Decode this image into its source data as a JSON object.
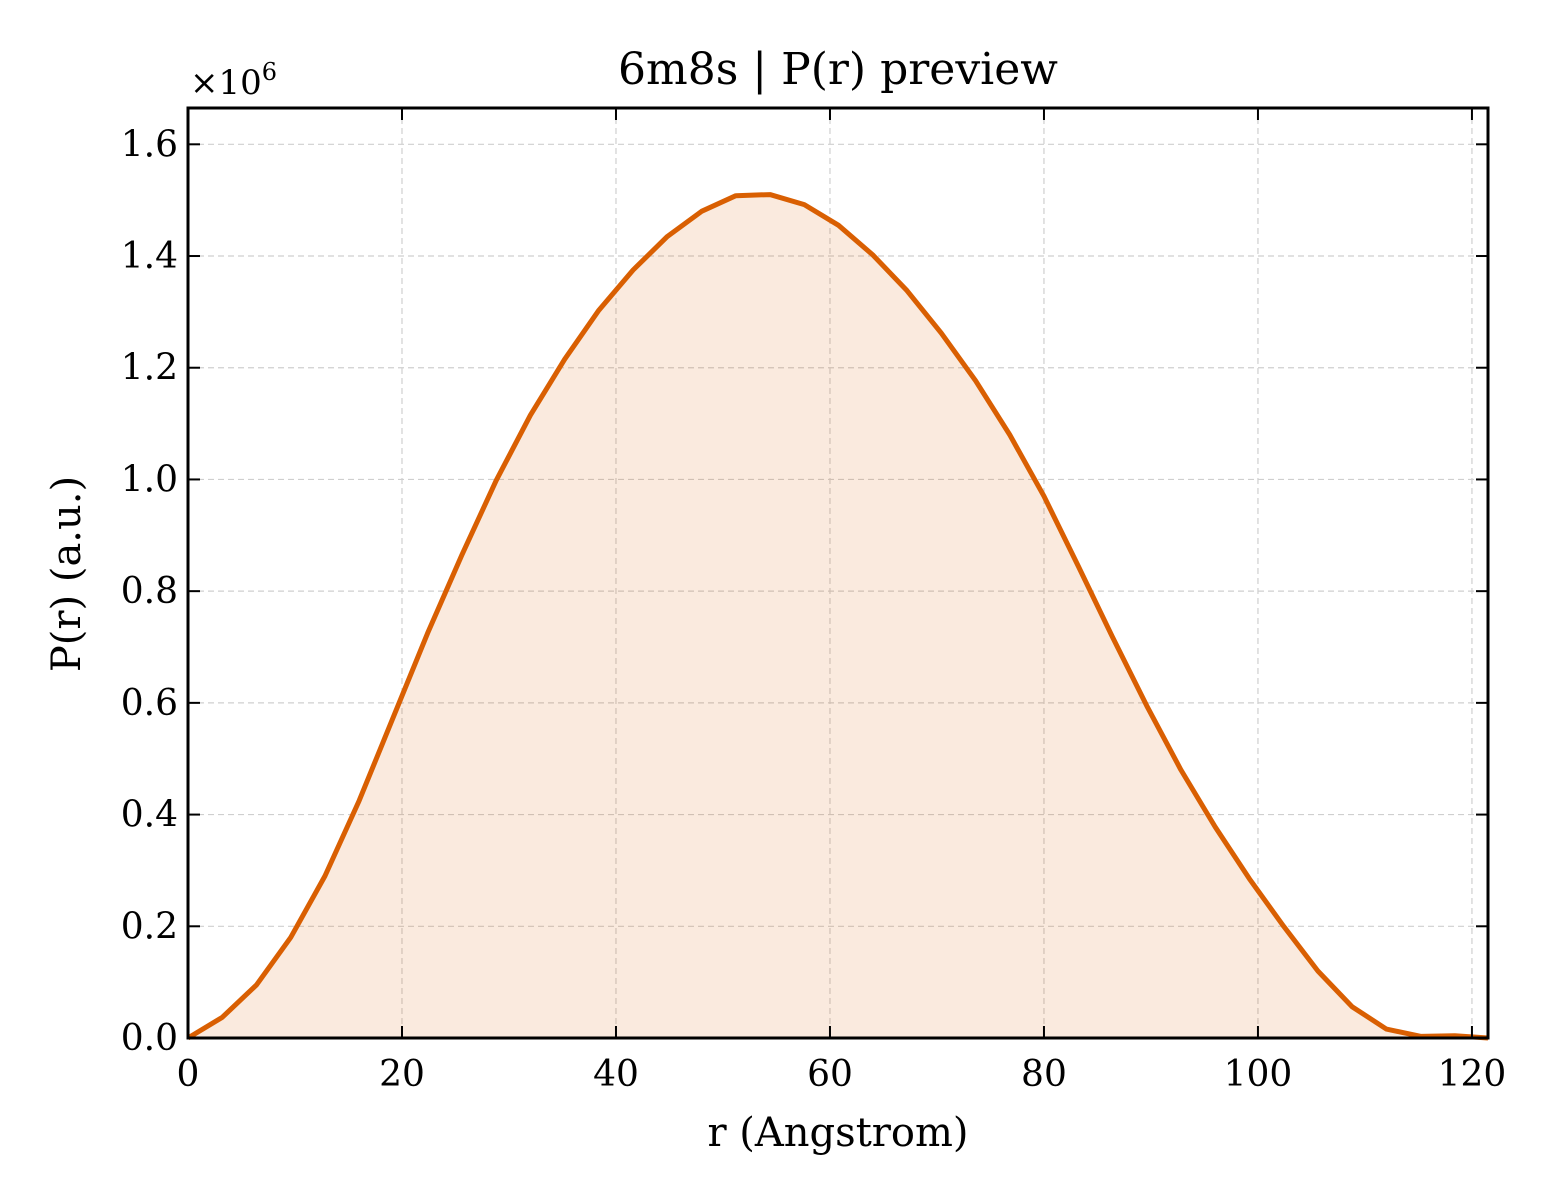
{
  "chart_data": {
    "type": "area",
    "title": "6m8s | P(r) preview",
    "xlabel": "r (Angstrom)",
    "ylabel": "P(r) (a.u.)",
    "y_offset_label": "×10",
    "y_offset_exponent": "6",
    "xlim": [
      0,
      121.5
    ],
    "ylim": [
      0,
      1.665
    ],
    "x_ticks": [
      0,
      20,
      40,
      60,
      80,
      100,
      120
    ],
    "x_tick_labels": [
      "0",
      "20",
      "40",
      "60",
      "80",
      "100",
      "120"
    ],
    "y_ticks": [
      0,
      0.2,
      0.4,
      0.6,
      0.8,
      1.0,
      1.2,
      1.4,
      1.6
    ],
    "y_tick_labels": [
      "0.0",
      "0.2",
      "0.4",
      "0.6",
      "0.8",
      "1.0",
      "1.2",
      "1.4",
      "1.6"
    ],
    "grid": true,
    "line_color": "#d95f02",
    "fill_color": "#d95f02",
    "series": [
      {
        "x": [
          0,
          3.2,
          6.4,
          9.6,
          12.8,
          16.0,
          19.2,
          22.4,
          25.6,
          28.8,
          32.0,
          35.2,
          38.4,
          41.6,
          44.8,
          48.0,
          51.2,
          54.4,
          57.6,
          60.8,
          64.0,
          67.2,
          70.4,
          73.6,
          76.8,
          80.0,
          83.2,
          86.4,
          89.6,
          92.8,
          96.0,
          99.2,
          102.4,
          105.6,
          108.8,
          112.0,
          115.2,
          118.4,
          121.5
        ],
        "y": [
          0.0,
          0.037,
          0.095,
          0.18,
          0.29,
          0.425,
          0.575,
          0.725,
          0.865,
          0.998,
          1.115,
          1.215,
          1.303,
          1.375,
          1.435,
          1.48,
          1.508,
          1.51,
          1.492,
          1.455,
          1.402,
          1.338,
          1.262,
          1.177,
          1.08,
          0.97,
          0.845,
          0.718,
          0.595,
          0.48,
          0.378,
          0.285,
          0.2,
          0.12,
          0.056,
          0.016,
          0.003,
          0.004,
          0.0
        ]
      }
    ]
  }
}
